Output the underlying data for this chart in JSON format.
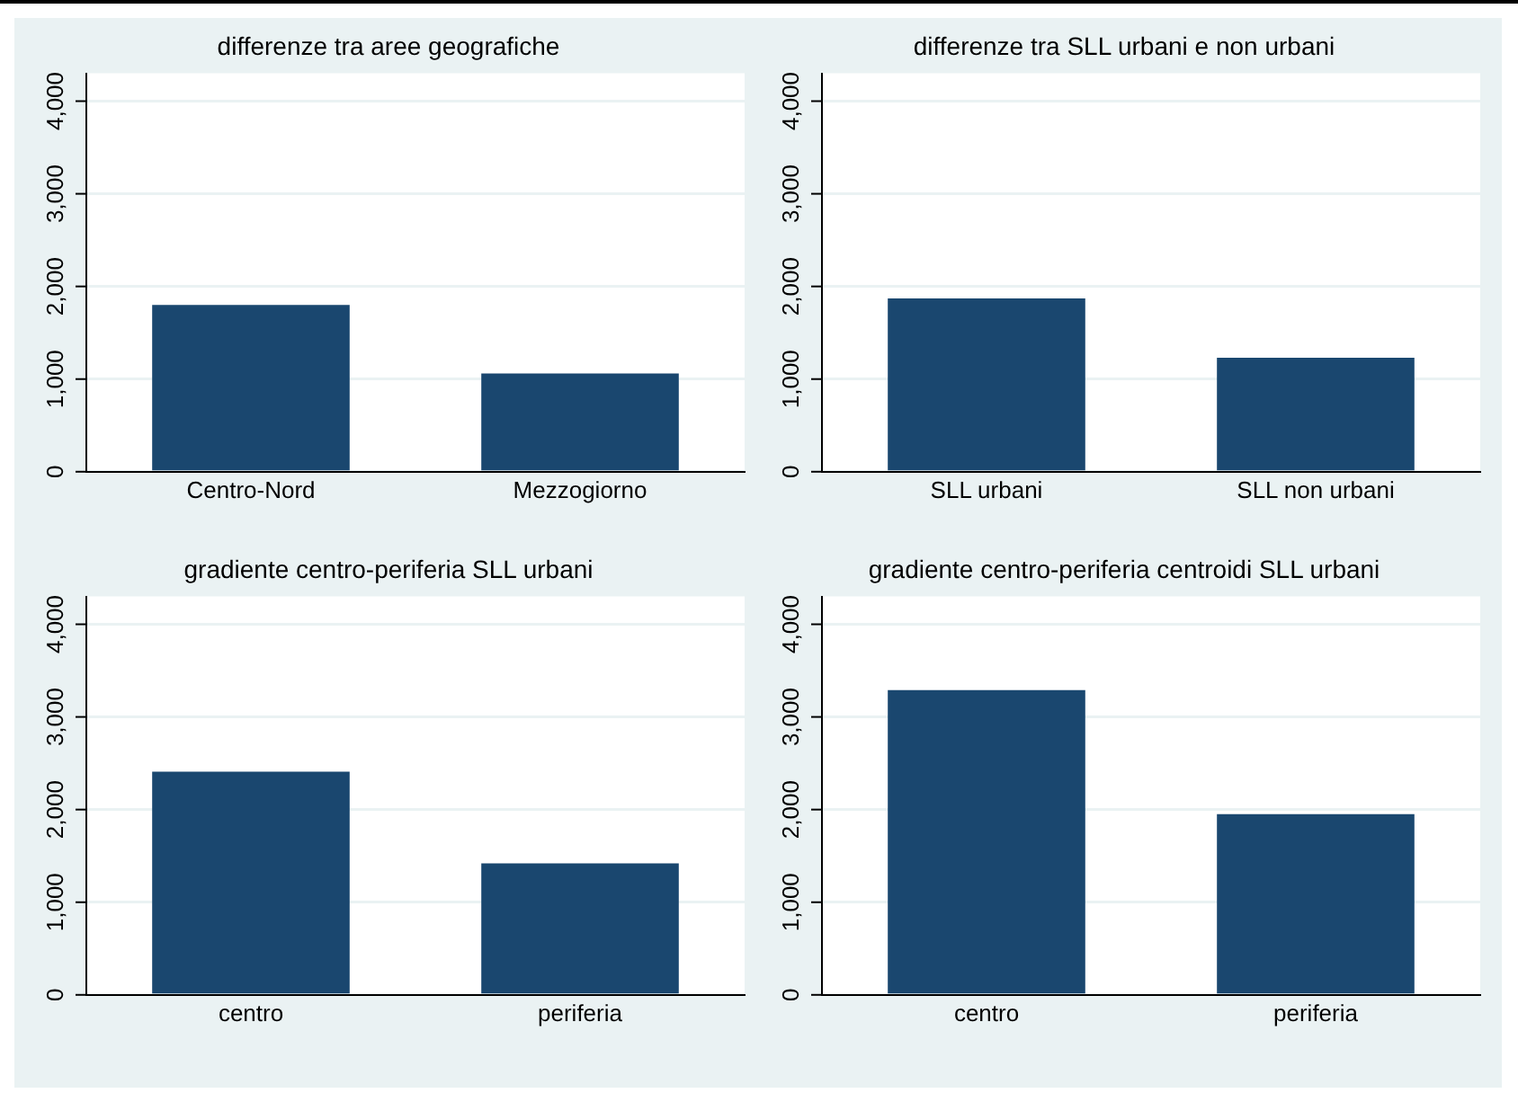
{
  "chart_data": [
    {
      "type": "bar",
      "title": "differenze tra aree geografiche",
      "categories": [
        "Centro-Nord",
        "Mezzogiorno"
      ],
      "values": [
        1800,
        1060
      ],
      "color": "#1a476f",
      "ylim": [
        0,
        4300
      ],
      "yticks": [
        {
          "value": 0,
          "label": "0"
        },
        {
          "value": 1000,
          "label": "1,000"
        },
        {
          "value": 2000,
          "label": "2,000"
        },
        {
          "value": 3000,
          "label": "3,000"
        },
        {
          "value": 4000,
          "label": "4,000"
        }
      ],
      "grid": "y"
    },
    {
      "type": "bar",
      "title": "differenze tra SLL urbani e non urbani",
      "categories": [
        "SLL urbani",
        "SLL non urbani"
      ],
      "values": [
        1870,
        1230
      ],
      "color": "#1a476f",
      "ylim": [
        0,
        4300
      ],
      "yticks": [
        {
          "value": 0,
          "label": "0"
        },
        {
          "value": 1000,
          "label": "1,000"
        },
        {
          "value": 2000,
          "label": "2,000"
        },
        {
          "value": 3000,
          "label": "3,000"
        },
        {
          "value": 4000,
          "label": "4,000"
        }
      ],
      "grid": "y"
    },
    {
      "type": "bar",
      "title": "gradiente centro-periferia SLL urbani",
      "categories": [
        "centro",
        "periferia"
      ],
      "values": [
        2410,
        1420
      ],
      "color": "#1a476f",
      "ylim": [
        0,
        4300
      ],
      "yticks": [
        {
          "value": 0,
          "label": "0"
        },
        {
          "value": 1000,
          "label": "1,000"
        },
        {
          "value": 2000,
          "label": "2,000"
        },
        {
          "value": 3000,
          "label": "3,000"
        },
        {
          "value": 4000,
          "label": "4,000"
        }
      ],
      "grid": "y"
    },
    {
      "type": "bar",
      "title": "gradiente centro-periferia centroidi SLL urbani",
      "categories": [
        "centro",
        "periferia"
      ],
      "values": [
        3290,
        1950
      ],
      "color": "#1a476f",
      "ylim": [
        0,
        4300
      ],
      "yticks": [
        {
          "value": 0,
          "label": "0"
        },
        {
          "value": 1000,
          "label": "1,000"
        },
        {
          "value": 2000,
          "label": "2,000"
        },
        {
          "value": 3000,
          "label": "3,000"
        },
        {
          "value": 4000,
          "label": "4,000"
        }
      ],
      "grid": "y"
    }
  ]
}
